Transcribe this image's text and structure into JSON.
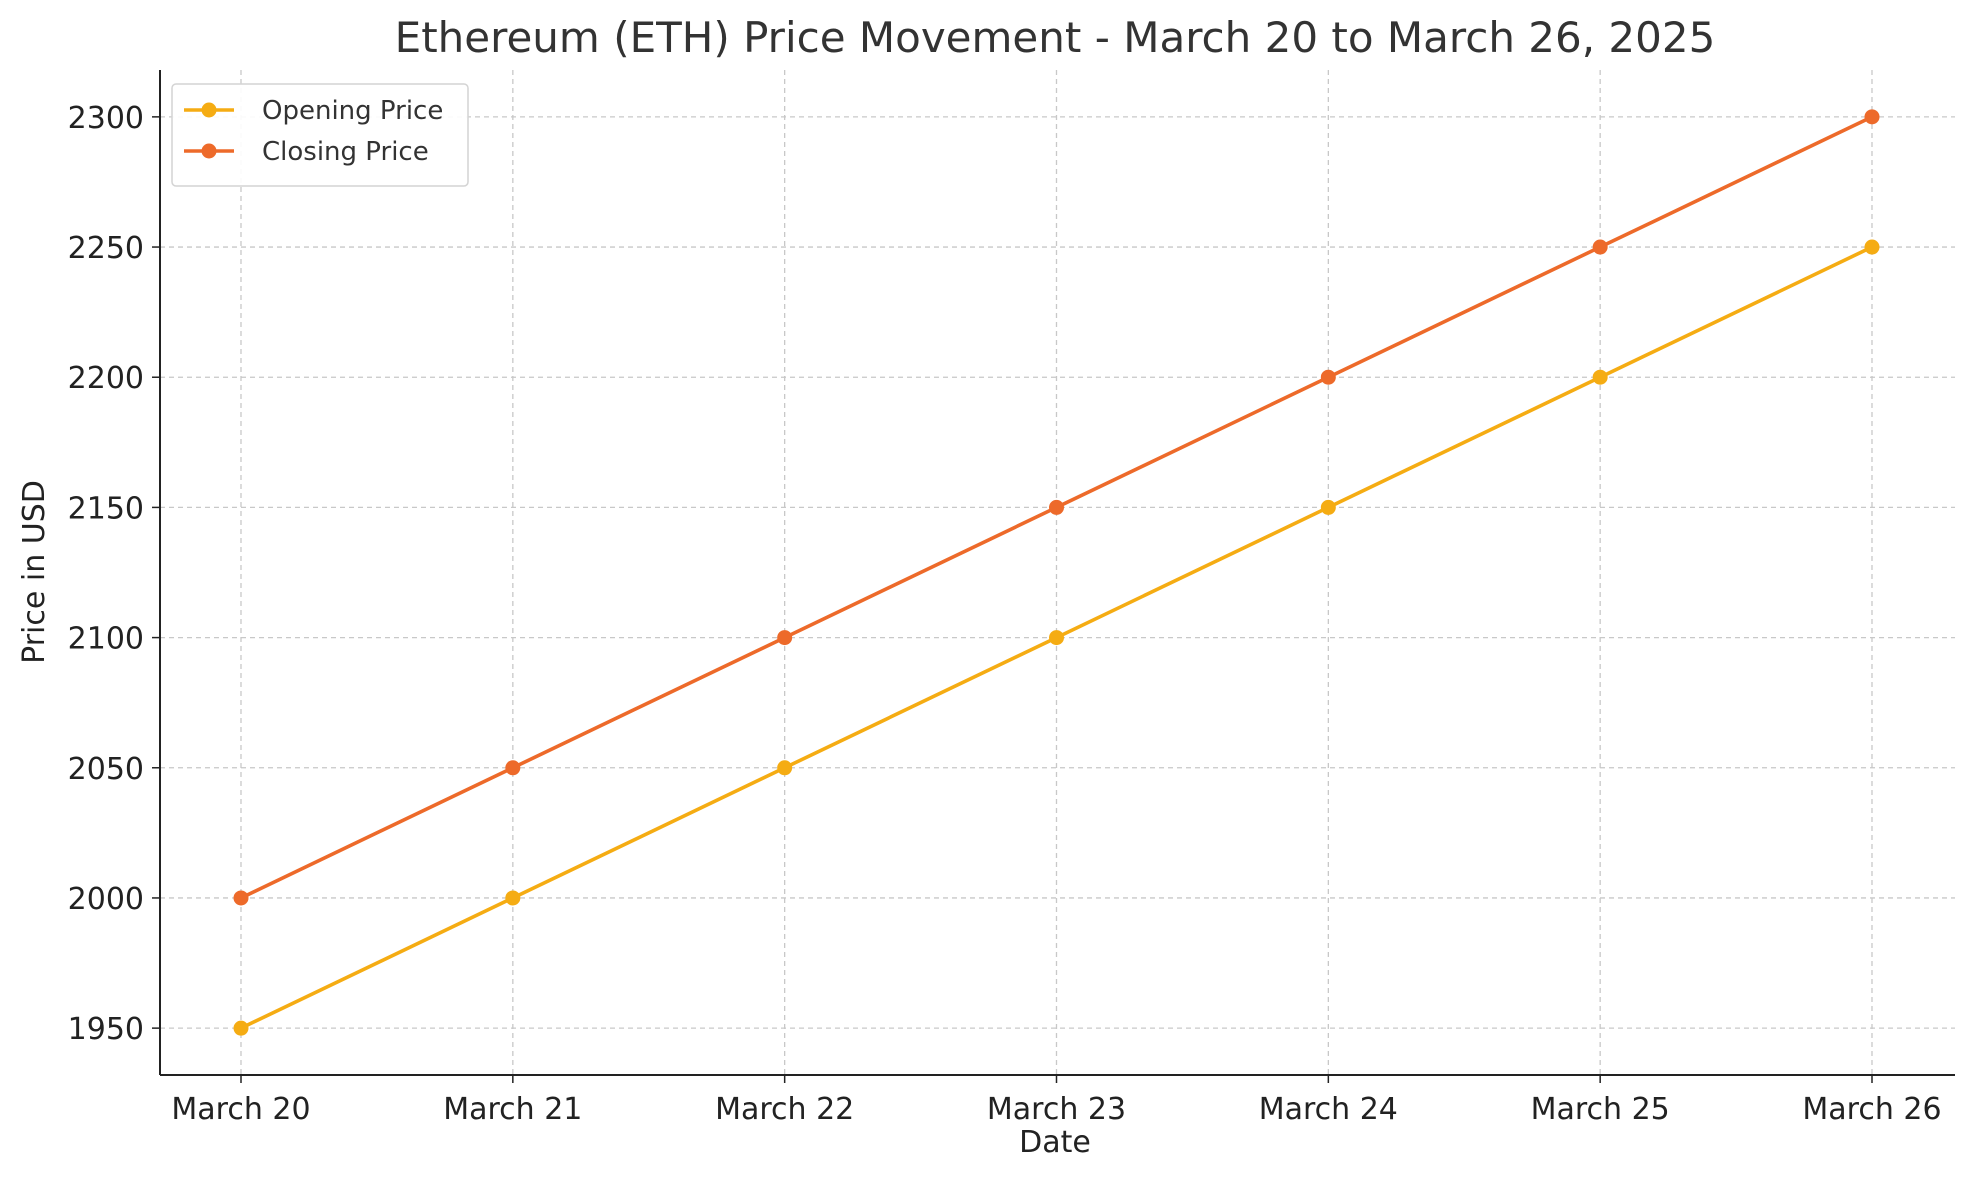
{
  "chart_data": {
    "type": "line",
    "title": "Ethereum (ETH) Price Movement - March 20 to March 26, 2025",
    "xlabel": "Date",
    "ylabel": "Price in USD",
    "categories": [
      "March 20",
      "March 21",
      "March 22",
      "March 23",
      "March 24",
      "March 25",
      "March 26"
    ],
    "yticks": [
      1950,
      2000,
      2050,
      2100,
      2150,
      2200,
      2250,
      2300
    ],
    "ylim": [
      1932,
      2318
    ],
    "grid": true,
    "legend_position": "top-left",
    "series": [
      {
        "name": "Opening Price",
        "color": "#f5ac13",
        "marker": "circle",
        "values": [
          1950,
          2000,
          2050,
          2100,
          2150,
          2200,
          2250
        ]
      },
      {
        "name": "Closing Price",
        "color": "#ed6a2a",
        "marker": "circle",
        "values": [
          2000,
          2050,
          2100,
          2150,
          2200,
          2250,
          2300
        ]
      }
    ]
  }
}
